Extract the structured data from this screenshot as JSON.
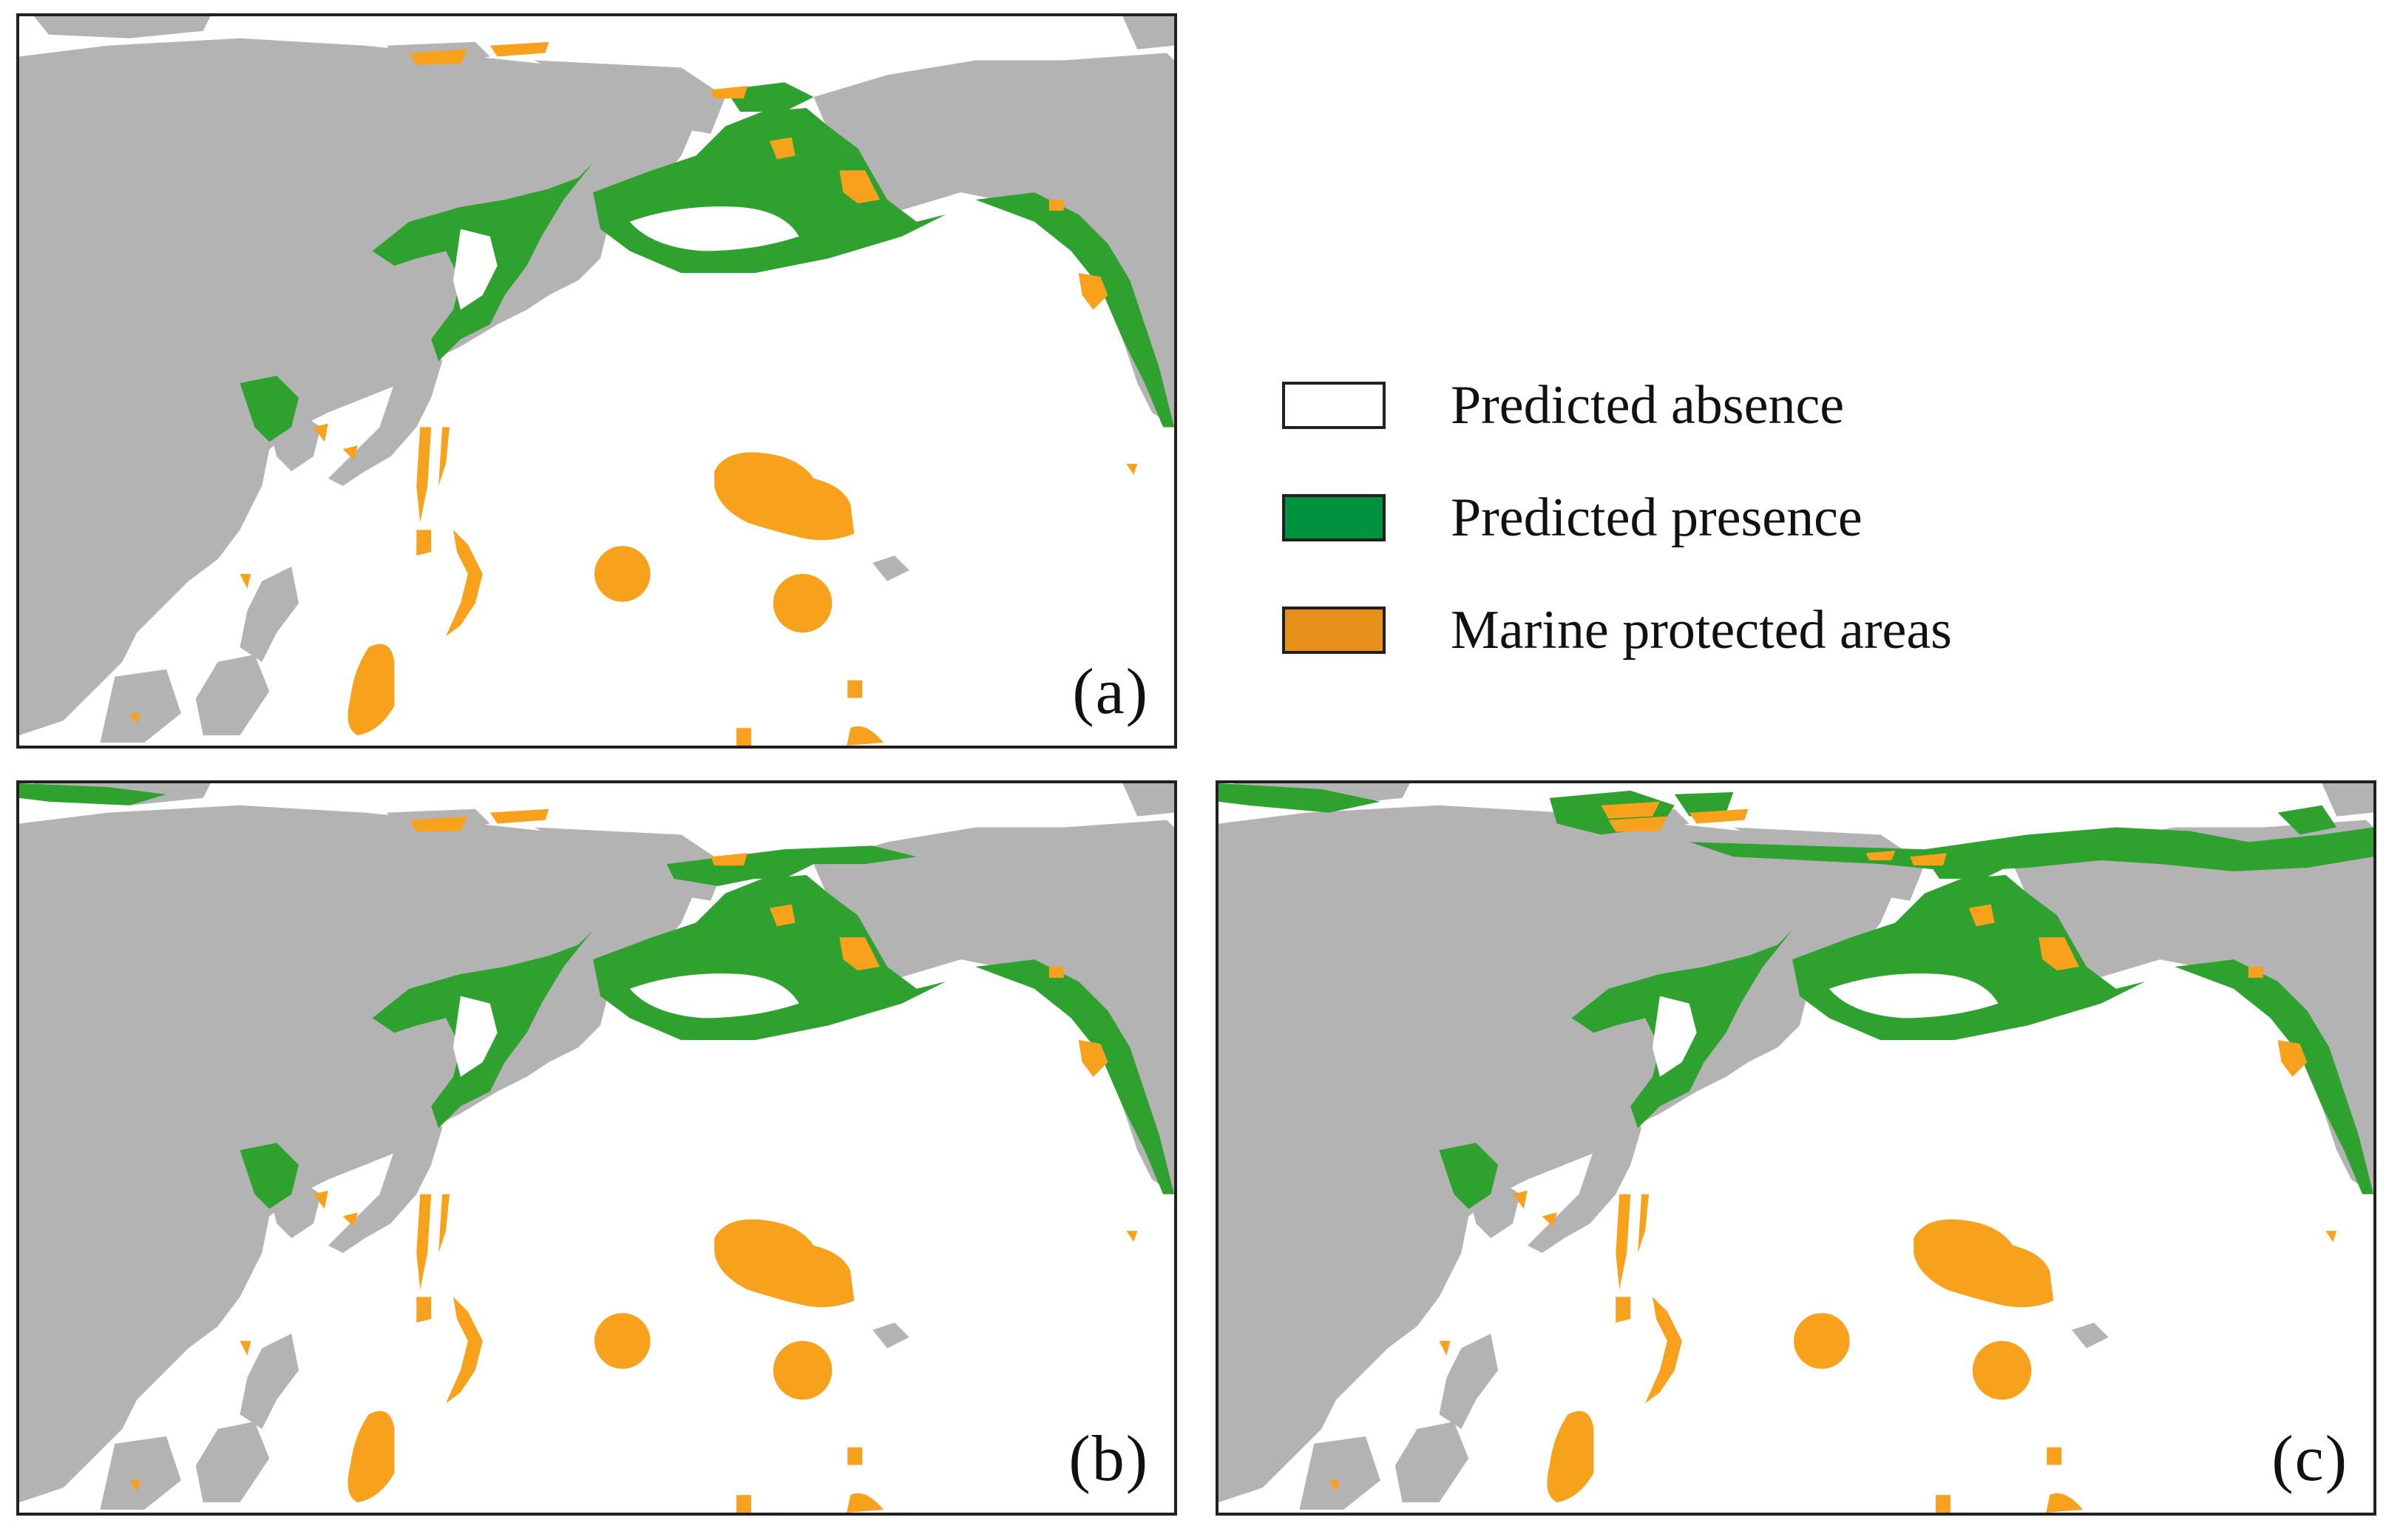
{
  "colors": {
    "land": "#b3b3b3",
    "ocean": "#ffffff",
    "presence": "#2ea12e",
    "mpa": "#f7a11c",
    "border": "#231f20"
  },
  "legend": {
    "items": [
      {
        "label": "Predicted absence",
        "color": "#ffffff"
      },
      {
        "label": "Predicted presence",
        "color": "#00923f"
      },
      {
        "label": "Marine protected areas",
        "color": "#e8911a"
      }
    ]
  },
  "panels": [
    {
      "label": "(a)",
      "arctic_presence": "none"
    },
    {
      "label": "(b)",
      "arctic_presence": "partial"
    },
    {
      "label": "(c)",
      "arctic_presence": "extensive"
    }
  ]
}
